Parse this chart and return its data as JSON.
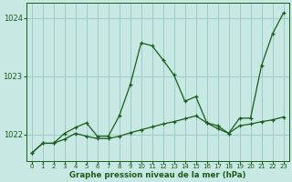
{
  "title": "Graphe pression niveau de la mer (hPa)",
  "bg_color": "#c8e8e4",
  "grid_color": "#9eccc8",
  "line_color": "#1a5c1a",
  "xlim": [
    -0.5,
    23.5
  ],
  "ylim": [
    1021.55,
    1024.25
  ],
  "yticks": [
    1022,
    1023,
    1024
  ],
  "xticks": [
    0,
    1,
    2,
    3,
    4,
    5,
    6,
    7,
    8,
    9,
    10,
    11,
    12,
    13,
    14,
    15,
    16,
    17,
    18,
    19,
    20,
    21,
    22,
    23
  ],
  "line1_x": [
    0,
    1,
    2,
    3,
    4,
    5,
    6,
    7,
    8,
    9,
    10,
    11,
    12,
    13,
    14,
    15,
    16,
    17,
    18,
    19,
    20,
    21,
    22,
    23
  ],
  "line1_y": [
    1021.68,
    1021.85,
    1021.85,
    1022.02,
    1022.12,
    1022.2,
    1021.97,
    1021.97,
    1022.32,
    1022.85,
    1023.57,
    1023.52,
    1023.28,
    1023.02,
    1022.57,
    1022.65,
    1022.2,
    1022.15,
    1022.02,
    1022.28,
    1022.28,
    1023.18,
    1023.72,
    1024.08
  ],
  "line2_x": [
    0,
    1,
    2,
    3,
    4,
    5,
    6,
    7,
    8,
    9,
    10,
    11,
    12,
    13,
    14,
    15,
    16,
    17,
    18,
    19,
    20,
    21,
    22,
    23
  ],
  "line2_y": [
    1021.68,
    1021.85,
    1021.85,
    1021.92,
    1022.02,
    1021.97,
    1021.93,
    1021.93,
    1021.97,
    1022.03,
    1022.08,
    1022.13,
    1022.18,
    1022.22,
    1022.27,
    1022.32,
    1022.2,
    1022.1,
    1022.02,
    1022.15,
    1022.18,
    1022.22,
    1022.25,
    1022.3
  ]
}
